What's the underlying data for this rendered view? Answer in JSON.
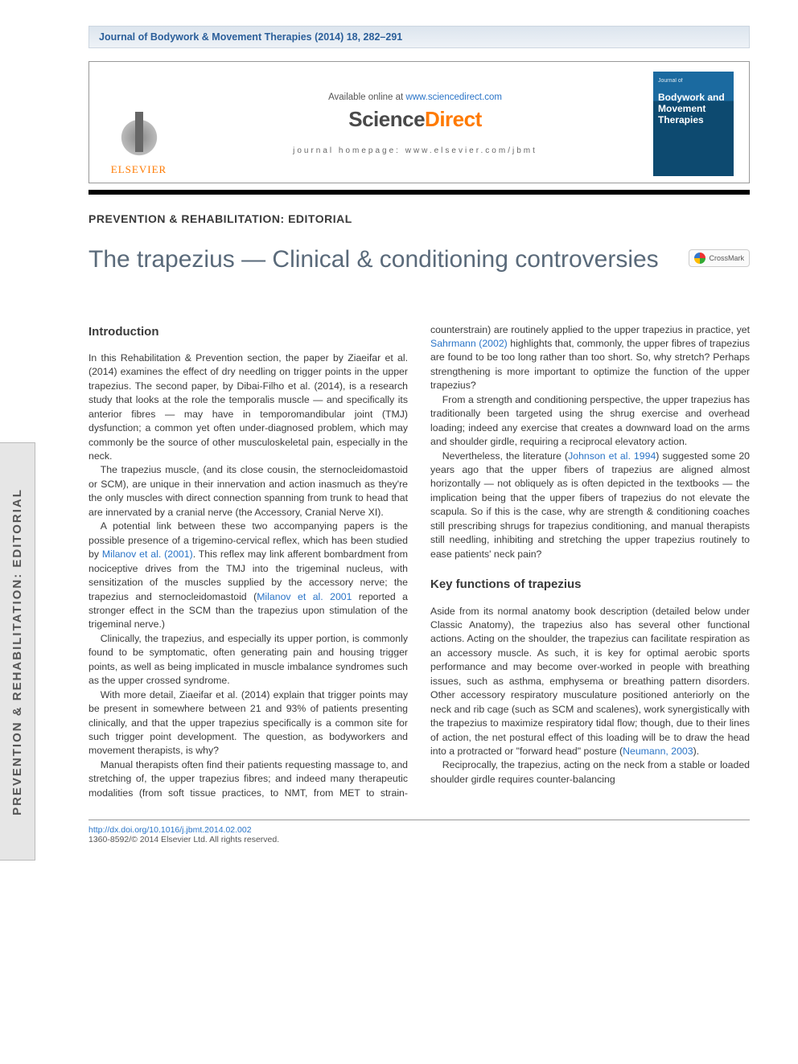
{
  "header": {
    "banner": "Journal of Bodywork & Movement Therapies (2014) 18, 282–291",
    "available_prefix": "Available online at ",
    "available_url": "www.sciencedirect.com",
    "sd_brand": "ScienceDirect",
    "jh_line": "journal homepage: www.elsevier.com/jbmt",
    "elsevier": "ELSEVIER",
    "cover_top": "Journal of",
    "cover_title": "Bodywork and Movement Therapies"
  },
  "side_tab": "PREVENTION & REHABILITATION: EDITORIAL",
  "section_label": "PREVENTION & REHABILITATION: EDITORIAL",
  "title": "The trapezius — Clinical & conditioning controversies",
  "crossmark": "CrossMark",
  "headings": {
    "intro": "Introduction",
    "keyfunc": "Key functions of trapezius"
  },
  "paras": {
    "p1": "In this Rehabilitation & Prevention section, the paper by Ziaeifar et al. (2014) examines the effect of dry needling on trigger points in the upper trapezius. The second paper, by Dibai-Filho et al. (2014), is a research study that looks at the role the temporalis muscle — and specifically its anterior fibres — may have in temporomandibular joint (TMJ) dysfunction; a common yet often under-diagnosed problem, which may commonly be the source of other musculoskeletal pain, especially in the neck.",
    "p2": "The trapezius muscle, (and its close cousin, the sternocleidomastoid or SCM), are unique in their innervation and action inasmuch as they're the only muscles with direct connection spanning from trunk to head that are innervated by a cranial nerve (the Accessory, Cranial Nerve XI).",
    "p3a": "A potential link between these two accompanying papers is the possible presence of a trigemino-cervical reflex, which has been studied by ",
    "p3cite1": "Milanov et al. (2001)",
    "p3b": ". This reflex may link afferent bombardment from nociceptive drives from the TMJ into the trigeminal nucleus, with sensitization of the muscles supplied by the accessory nerve; the trapezius and sternocleidomastoid (",
    "p3cite2": "Milanov et al. 2001",
    "p3c": " reported a stronger effect in the SCM than the trapezius upon stimulation of the trigeminal nerve.)",
    "p4": "Clinically, the trapezius, and especially its upper portion, is commonly found to be symptomatic, often generating pain and housing trigger points, as well as being implicated in muscle imbalance syndromes such as the upper crossed syndrome.",
    "p5": "With more detail, Ziaeifar et al. (2014) explain that trigger points may be present in somewhere between 21 and 93% of patients presenting clinically, and that the upper trapezius specifically is a common site for such trigger point development. The question, as bodyworkers and movement therapists, is why?",
    "p6a": "Manual therapists often find their patients requesting massage to, and stretching of, the upper trapezius fibres; and indeed many therapeutic modalities (from soft tissue practices, to NMT, from MET to strain-counterstrain) are routinely applied to the upper trapezius in practice, yet ",
    "p6cite": "Sahrmann (2002)",
    "p6b": " highlights that, commonly, the upper fibres of trapezius are found to be too long rather than too short. So, why stretch? Perhaps strengthening is more important to optimize the function of the upper trapezius?",
    "p7": "From a strength and conditioning perspective, the upper trapezius has traditionally been targeted using the shrug exercise and overhead loading; indeed any exercise that creates a downward load on the arms and shoulder girdle, requiring a reciprocal elevatory action.",
    "p8a": "Nevertheless, the literature (",
    "p8cite": "Johnson et al. 1994",
    "p8b": ") suggested some 20 years ago that the upper fibers of trapezius are aligned almost horizontally — not obliquely as is often depicted in the textbooks — the implication being that the upper fibers of trapezius do not elevate the scapula. So if this is the case, why are strength & conditioning coaches still prescribing shrugs for trapezius conditioning, and manual therapists still needling, inhibiting and stretching the upper trapezius routinely to ease patients' neck pain?",
    "p9a": "Aside from its normal anatomy book description (detailed below under Classic Anatomy), the trapezius also has several other functional actions. Acting on the shoulder, the trapezius can facilitate respiration as an accessory muscle. As such, it is key for optimal aerobic sports performance and may become over-worked in people with breathing issues, such as asthma, emphysema or breathing pattern disorders. Other accessory respiratory musculature positioned anteriorly on the neck and rib cage (such as SCM and scalenes), work synergistically with the trapezius to maximize respiratory tidal flow; though, due to their lines of action, the net postural effect of this loading will be to draw the head into a protracted or \"forward head\" posture (",
    "p9cite": "Neumann, 2003",
    "p9b": ").",
    "p10": "Reciprocally, the trapezius, acting on the neck from a stable or loaded shoulder girdle requires counter-balancing"
  },
  "footer": {
    "doi": "http://dx.doi.org/10.1016/j.jbmt.2014.02.002",
    "issn_line": "1360-8592/© 2014 Elsevier Ltd. All rights reserved."
  },
  "colors": {
    "banner_text": "#2b5f9a",
    "link": "#2a74c7",
    "orange": "#ff7a00",
    "title_gray": "#5a6a7a"
  }
}
